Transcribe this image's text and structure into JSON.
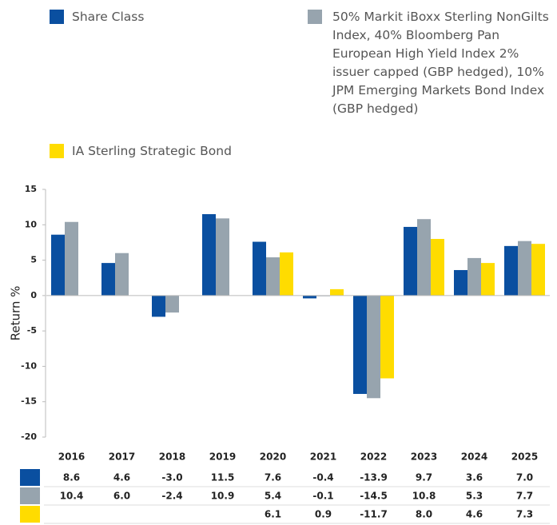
{
  "chart_data": {
    "type": "bar",
    "categories": [
      "2016",
      "2017",
      "2018",
      "2019",
      "2020",
      "2021",
      "2022",
      "2023",
      "2024",
      "2025"
    ],
    "series": [
      {
        "name": "Share Class",
        "color": "#0a4fa0",
        "values": [
          8.6,
          4.6,
          -3.0,
          11.5,
          7.6,
          -0.4,
          -13.9,
          9.7,
          3.6,
          7.0
        ],
        "value_labels": [
          "8.6",
          "4.6",
          "-3.0",
          "11.5",
          "7.6",
          "-0.4",
          "-13.9",
          "9.7",
          "3.6",
          "7.0"
        ]
      },
      {
        "name": "50% Markit iBoxx Sterling NonGilts Index, 40% Bloomberg Pan European High Yield Index 2% issuer capped (GBP hedged), 10% JPM Emerging Markets Bond Index (GBP hedged)",
        "color": "#97a4ae",
        "values": [
          10.4,
          6.0,
          -2.4,
          10.9,
          5.4,
          -0.1,
          -14.5,
          10.8,
          5.3,
          7.7
        ],
        "value_labels": [
          "10.4",
          "6.0",
          "-2.4",
          "10.9",
          "5.4",
          "-0.1",
          "-14.5",
          "10.8",
          "5.3",
          "7.7"
        ]
      },
      {
        "name": "IA Sterling Strategic Bond",
        "color": "#ffdc00",
        "values": [
          null,
          null,
          null,
          null,
          6.1,
          0.9,
          -11.7,
          8.0,
          4.6,
          7.3
        ],
        "value_labels": [
          null,
          null,
          null,
          null,
          "6.1",
          "0.9",
          "-11.7",
          "8.0",
          "4.6",
          "7.3"
        ]
      }
    ],
    "ylabel": "Return %",
    "ylim": [
      -20,
      15
    ],
    "yticks": [
      -20,
      -15,
      -10,
      -5,
      0,
      5,
      10,
      15
    ]
  }
}
